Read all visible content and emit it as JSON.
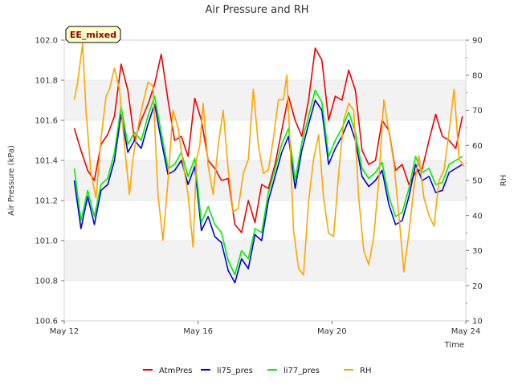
{
  "chart_data": {
    "type": "line",
    "title": "Air Pressure and RH",
    "badge": "EE_mixed",
    "xlabel": "Time",
    "ylabel": "Air Pressure (kPa)",
    "y2label": "RH",
    "x_ticks": [
      {
        "day": 12,
        "label": "May 12"
      },
      {
        "day": 16,
        "label": "May 16"
      },
      {
        "day": 20,
        "label": "May 20"
      },
      {
        "day": 24,
        "label": "May 24"
      }
    ],
    "xlim": [
      12,
      24
    ],
    "ylim": [
      100.6,
      102.0
    ],
    "y_ticks": [
      "100.6",
      "100.8",
      "101.0",
      "101.2",
      "101.4",
      "101.6",
      "101.8",
      "102.0"
    ],
    "y2lim": [
      10,
      90
    ],
    "y2_ticks": [
      "10",
      "20",
      "30",
      "40",
      "50",
      "60",
      "70",
      "80",
      "90"
    ],
    "grid": "horizontal bands",
    "legend_position": "bottom",
    "series": [
      {
        "name": "AtmPres",
        "axis": "left",
        "color": "#ee0000",
        "x": [
          12.3,
          12.5,
          12.7,
          12.9,
          13.1,
          13.3,
          13.5,
          13.7,
          13.9,
          14.1,
          14.3,
          14.5,
          14.7,
          14.9,
          15.1,
          15.3,
          15.5,
          15.7,
          15.9,
          16.1,
          16.3,
          16.5,
          16.7,
          16.9,
          17.1,
          17.3,
          17.5,
          17.7,
          17.9,
          18.1,
          18.3,
          18.5,
          18.7,
          18.9,
          19.1,
          19.3,
          19.5,
          19.7,
          19.9,
          20.1,
          20.3,
          20.5,
          20.7,
          20.9,
          21.1,
          21.3,
          21.5,
          21.7,
          21.9,
          22.1,
          22.3,
          22.5,
          22.7,
          22.9,
          23.1,
          23.3,
          23.5,
          23.7,
          23.9
        ],
        "y": [
          101.56,
          101.45,
          101.35,
          101.3,
          101.48,
          101.53,
          101.62,
          101.88,
          101.75,
          101.5,
          101.6,
          101.68,
          101.78,
          101.93,
          101.7,
          101.5,
          101.52,
          101.42,
          101.71,
          101.6,
          101.4,
          101.36,
          101.3,
          101.31,
          101.08,
          101.04,
          101.2,
          101.09,
          101.28,
          101.26,
          101.38,
          101.55,
          101.72,
          101.6,
          101.52,
          101.7,
          101.96,
          101.9,
          101.6,
          101.72,
          101.7,
          101.85,
          101.75,
          101.45,
          101.38,
          101.4,
          101.6,
          101.55,
          101.35,
          101.38,
          101.28,
          101.34,
          101.36,
          101.5,
          101.63,
          101.52,
          101.5,
          101.46,
          101.62
        ]
      },
      {
        "name": "li75_pres",
        "axis": "left",
        "color": "#0000dd",
        "x": [
          12.3,
          12.5,
          12.7,
          12.9,
          13.1,
          13.3,
          13.5,
          13.7,
          13.9,
          14.1,
          14.3,
          14.5,
          14.7,
          14.9,
          15.1,
          15.3,
          15.5,
          15.7,
          15.9,
          16.1,
          16.3,
          16.5,
          16.7,
          16.9,
          17.1,
          17.3,
          17.5,
          17.7,
          17.9,
          18.1,
          18.3,
          18.5,
          18.7,
          18.9,
          19.1,
          19.3,
          19.5,
          19.7,
          19.9,
          20.1,
          20.3,
          20.5,
          20.7,
          20.9,
          21.1,
          21.3,
          21.5,
          21.7,
          21.9,
          22.1,
          22.3,
          22.5,
          22.7,
          22.9,
          23.1,
          23.3,
          23.5,
          23.7,
          23.9
        ],
        "y": [
          101.3,
          101.06,
          101.22,
          101.08,
          101.25,
          101.28,
          101.4,
          101.63,
          101.44,
          101.5,
          101.46,
          101.58,
          101.68,
          101.5,
          101.33,
          101.35,
          101.4,
          101.28,
          101.37,
          101.05,
          101.12,
          101.02,
          100.99,
          100.85,
          100.79,
          100.91,
          100.86,
          101.03,
          101.0,
          101.2,
          101.32,
          101.44,
          101.52,
          101.26,
          101.45,
          101.58,
          101.7,
          101.65,
          101.38,
          101.46,
          101.52,
          101.6,
          101.5,
          101.32,
          101.27,
          101.3,
          101.35,
          101.18,
          101.08,
          101.1,
          101.22,
          101.38,
          101.3,
          101.32,
          101.24,
          101.25,
          101.34,
          101.36,
          101.38
        ]
      },
      {
        "name": "li77_pres",
        "axis": "left",
        "color": "#00ee00",
        "x": [
          12.3,
          12.5,
          12.7,
          12.9,
          13.1,
          13.3,
          13.5,
          13.7,
          13.9,
          14.1,
          14.3,
          14.5,
          14.7,
          14.9,
          15.1,
          15.3,
          15.5,
          15.7,
          15.9,
          16.1,
          16.3,
          16.5,
          16.7,
          16.9,
          17.1,
          17.3,
          17.5,
          17.7,
          17.9,
          18.1,
          18.3,
          18.5,
          18.7,
          18.9,
          19.1,
          19.3,
          19.5,
          19.7,
          19.9,
          20.1,
          20.3,
          20.5,
          20.7,
          20.9,
          21.1,
          21.3,
          21.5,
          21.7,
          21.9,
          22.1,
          22.3,
          22.5,
          22.7,
          22.9,
          23.1,
          23.3,
          23.5,
          23.7,
          23.9
        ],
        "y": [
          101.36,
          101.1,
          101.25,
          101.12,
          101.28,
          101.31,
          101.44,
          101.67,
          101.48,
          101.54,
          101.5,
          101.62,
          101.72,
          101.54,
          101.36,
          101.38,
          101.44,
          101.32,
          101.41,
          101.09,
          101.17,
          101.08,
          101.04,
          100.9,
          100.83,
          100.95,
          100.91,
          101.06,
          101.04,
          101.24,
          101.36,
          101.48,
          101.56,
          101.3,
          101.49,
          101.62,
          101.75,
          101.69,
          101.42,
          101.5,
          101.56,
          101.64,
          101.54,
          101.36,
          101.31,
          101.34,
          101.39,
          101.22,
          101.12,
          101.14,
          101.26,
          101.42,
          101.34,
          101.36,
          101.28,
          101.29,
          101.38,
          101.4,
          101.42
        ]
      },
      {
        "name": "RH",
        "axis": "right",
        "color": "#ffa500",
        "x": [
          12.3,
          12.4,
          12.55,
          12.65,
          12.8,
          12.95,
          13.1,
          13.25,
          13.35,
          13.5,
          13.65,
          13.8,
          13.95,
          14.05,
          14.2,
          14.35,
          14.5,
          14.65,
          14.8,
          14.95,
          15.1,
          15.25,
          15.4,
          15.55,
          15.7,
          15.85,
          15.95,
          16.05,
          16.15,
          16.3,
          16.45,
          16.6,
          16.75,
          16.9,
          17.05,
          17.2,
          17.35,
          17.5,
          17.65,
          17.8,
          17.95,
          18.1,
          18.25,
          18.4,
          18.55,
          18.65,
          18.75,
          18.85,
          19.0,
          19.15,
          19.3,
          19.45,
          19.6,
          19.75,
          19.9,
          20.05,
          20.2,
          20.35,
          20.5,
          20.65,
          20.8,
          20.95,
          21.1,
          21.25,
          21.4,
          21.55,
          21.7,
          21.85,
          22.0,
          22.15,
          22.3,
          22.45,
          22.6,
          22.75,
          22.9,
          23.05,
          23.2,
          23.35,
          23.5,
          23.65,
          23.8,
          23.95
        ],
        "y": [
          73,
          78,
          89,
          70,
          52,
          45,
          62,
          74,
          76,
          82,
          76,
          60,
          46,
          56,
          65,
          72,
          78,
          77,
          46,
          33,
          50,
          70,
          65,
          55,
          46,
          31,
          56,
          60,
          72,
          54,
          46,
          60,
          70,
          53,
          41,
          42,
          52,
          56,
          76,
          60,
          52,
          53,
          62,
          73,
          73,
          80,
          60,
          36,
          25,
          23,
          44,
          56,
          63,
          45,
          35,
          34,
          52,
          67,
          72,
          70,
          45,
          30,
          26,
          34,
          50,
          73,
          64,
          55,
          40,
          24,
          35,
          48,
          57,
          45,
          40,
          37,
          50,
          53,
          64,
          76,
          56,
          54
        ]
      }
    ]
  }
}
